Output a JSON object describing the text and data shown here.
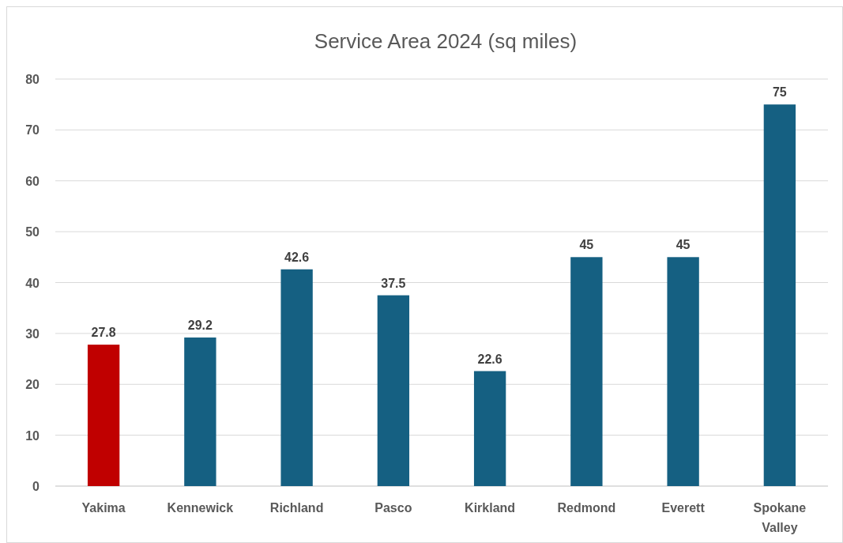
{
  "chart_data": {
    "type": "bar",
    "title": "Service Area 2024 (sq miles)",
    "categories": [
      "Yakima",
      "Kennewick",
      "Richland",
      "Pasco",
      "Kirkland",
      "Redmond",
      "Everett",
      "Spokane Valley"
    ],
    "values": [
      27.8,
      29.2,
      42.6,
      37.5,
      22.6,
      45,
      45,
      75
    ],
    "colors": [
      "#c00000",
      "#156082",
      "#156082",
      "#156082",
      "#156082",
      "#156082",
      "#156082",
      "#156082"
    ],
    "ylim": [
      0,
      80
    ],
    "yticks": [
      0,
      10,
      20,
      30,
      40,
      50,
      60,
      70,
      80
    ],
    "grid": "y",
    "data_labels": true
  }
}
